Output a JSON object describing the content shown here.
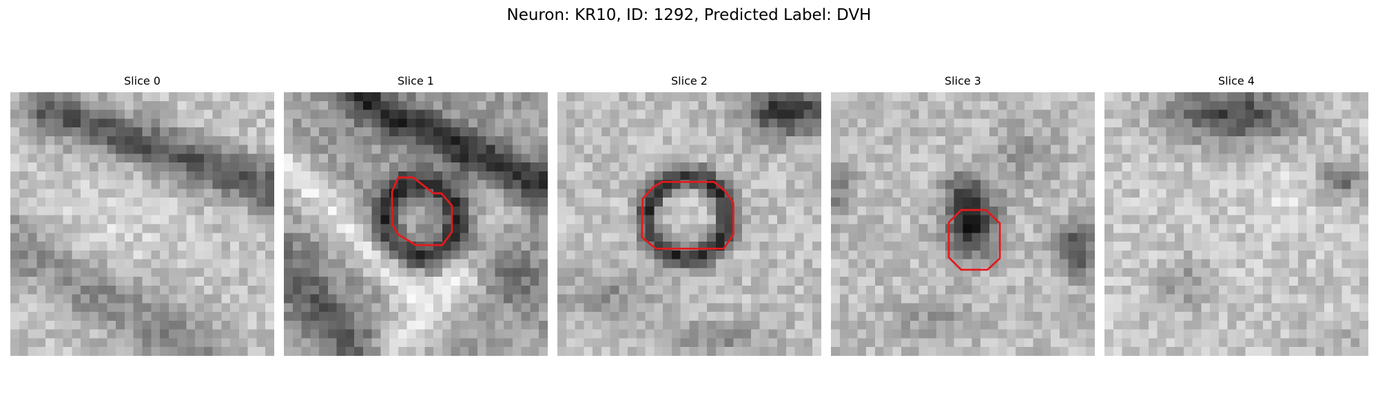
{
  "figure": {
    "title": "Neuron: KR10, ID: 1292, Predicted Label: DVH",
    "contour_color": "#e41a1c",
    "colormap": "grayscale"
  },
  "panels": [
    {
      "title": "Slice 0",
      "has_contour": false,
      "scene": "diagonal dark band across upper half, mottled light background"
    },
    {
      "title": "Slice 1",
      "has_contour": true,
      "scene": "dark ring cell body with bright process surround and dark band top-right"
    },
    {
      "title": "Slice 2",
      "has_contour": true,
      "scene": "round dark ring with light center, dark corner top-right"
    },
    {
      "title": "Slice 3",
      "has_contour": true,
      "scene": "compact dark blob in center, dark spots left and right"
    },
    {
      "title": "Slice 4",
      "has_contour": false,
      "scene": "dark rectangular block at top, faint dark blob right and lower-left"
    }
  ]
}
